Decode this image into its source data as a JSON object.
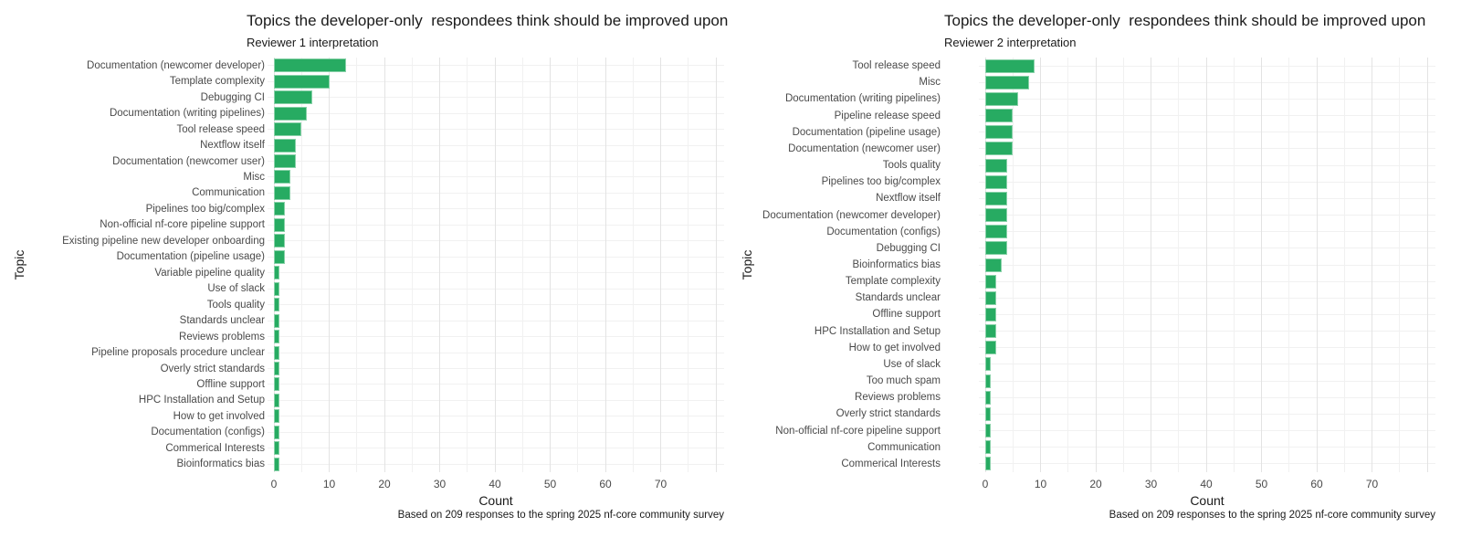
{
  "style": {
    "background": "#ffffff",
    "bar_color": "#27ab62",
    "grid_major": "#e3e3e3",
    "grid_minor": "#f1f1f1",
    "title_color": "#1a1a1a",
    "axis_text_color": "#4a4a4a"
  },
  "chart_data": [
    {
      "type": "bar",
      "orientation": "horizontal",
      "title": "Topics the developer-only  respondees think should be improved upon",
      "subtitle": "Reviewer 1 interpretation",
      "xlabel": "Count",
      "ylabel": "Topic",
      "caption": "Based on 209 responses to the spring 2025 nf-core community survey",
      "xlim": [
        0,
        80
      ],
      "x_ticks": [
        0,
        10,
        20,
        30,
        40,
        50,
        60,
        70
      ],
      "minor_tick_step": 5,
      "grid": true,
      "legend": "none",
      "categories": [
        "Documentation (newcomer developer)",
        "Template complexity",
        "Debugging CI",
        "Documentation (writing pipelines)",
        "Tool release speed",
        "Nextflow itself",
        "Documentation (newcomer user)",
        "Misc",
        "Communication",
        "Pipelines too big/complex",
        "Non-official nf-core pipeline support",
        "Existing pipeline new developer onboarding",
        "Documentation (pipeline usage)",
        "Variable pipeline quality",
        "Use of slack",
        "Tools quality",
        "Standards unclear",
        "Reviews problems",
        "Pipeline proposals procedure unclear",
        "Overly strict standards",
        "Offline support",
        "HPC Installation and Setup",
        "How to get involved",
        "Documentation (configs)",
        "Commerical Interests",
        "Bioinformatics bias"
      ],
      "values": [
        13,
        10,
        7,
        6,
        5,
        4,
        4,
        3,
        3,
        2,
        2,
        2,
        2,
        1,
        1,
        1,
        1,
        1,
        1,
        1,
        1,
        1,
        1,
        1,
        1,
        1
      ]
    },
    {
      "type": "bar",
      "orientation": "horizontal",
      "title": "Topics the developer-only  respondees think should be improved upon",
      "subtitle": "Reviewer 2 interpretation",
      "xlabel": "Count",
      "ylabel": "Topic",
      "caption": "Based on 209 responses to the spring 2025 nf-core community survey",
      "xlim": [
        0,
        80
      ],
      "x_ticks": [
        0,
        10,
        20,
        30,
        40,
        50,
        60,
        70
      ],
      "minor_tick_step": 5,
      "grid": true,
      "legend": "none",
      "categories": [
        "Tool release speed",
        "Misc",
        "Documentation (writing pipelines)",
        "Pipeline release speed",
        "Documentation (pipeline usage)",
        "Documentation (newcomer user)",
        "Tools quality",
        "Pipelines too big/complex",
        "Nextflow itself",
        "Documentation (newcomer developer)",
        "Documentation (configs)",
        "Debugging CI",
        "Bioinformatics bias",
        "Template complexity",
        "Standards unclear",
        "Offline support",
        "HPC Installation and Setup",
        "How to get involved",
        "Use of slack",
        "Too much spam",
        "Reviews problems",
        "Overly strict standards",
        "Non-official nf-core pipeline support",
        "Communication",
        "Commerical Interests"
      ],
      "values": [
        9,
        8,
        6,
        5,
        5,
        5,
        4,
        4,
        4,
        4,
        4,
        4,
        3,
        2,
        2,
        2,
        2,
        2,
        1,
        1,
        1,
        1,
        1,
        1,
        1
      ]
    }
  ]
}
